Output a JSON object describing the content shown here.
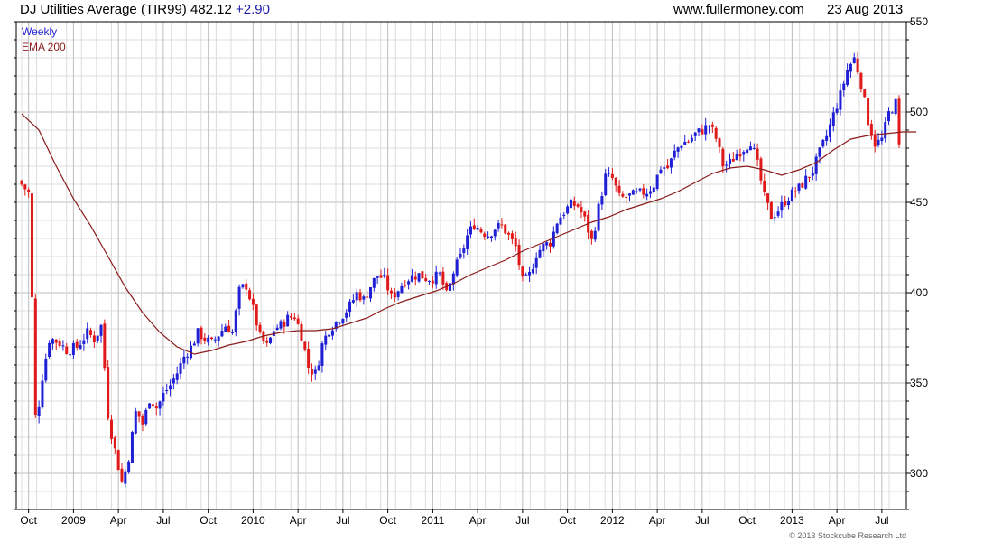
{
  "header": {
    "title": "DJ Utilities Average (TIR99) 482.12",
    "change": "+2.90",
    "site": "www.fullermoney.com",
    "date": "23 Aug 2013"
  },
  "legend": {
    "line1": "Weekly",
    "line2": "EMA 200"
  },
  "credit": "© 2013 Stockcube Research Ltd",
  "colors": {
    "up": "#1f1fd6",
    "down": "#e01a1a",
    "ema": "#8b1a1a",
    "grid": "#dcdcdc",
    "major_grid": "#bdbdbd"
  },
  "chart_data": {
    "type": "candlestick",
    "title": "DJ Utilities Average (TIR99) 482.12 +2.90",
    "ylim": [
      280,
      550
    ],
    "y_ticks": [
      300,
      350,
      400,
      450,
      500,
      550
    ],
    "x_ticks": [
      "Oct",
      "2009",
      "Apr",
      "Jul",
      "Oct",
      "2010",
      "Apr",
      "Jul",
      "Oct",
      "2011",
      "Apr",
      "Jul",
      "Oct",
      "2012",
      "Apr",
      "Jul",
      "Oct",
      "2013",
      "Apr",
      "Jul"
    ],
    "x_range": [
      0,
      254
    ],
    "x_tick_weeks": [
      2,
      15,
      28,
      41,
      54,
      67,
      80,
      93,
      106,
      119,
      132,
      145,
      158,
      171,
      184,
      197,
      210,
      223,
      236,
      249
    ],
    "series_names": [
      "Weekly",
      "EMA 200"
    ],
    "price_path": [
      [
        0,
        462
      ],
      [
        3,
        455
      ],
      [
        5,
        325
      ],
      [
        7,
        355
      ],
      [
        9,
        375
      ],
      [
        12,
        372
      ],
      [
        14,
        368
      ],
      [
        17,
        370
      ],
      [
        20,
        378
      ],
      [
        22,
        374
      ],
      [
        24,
        382
      ],
      [
        26,
        330
      ],
      [
        28,
        312
      ],
      [
        30,
        294
      ],
      [
        32,
        310
      ],
      [
        34,
        335
      ],
      [
        36,
        327
      ],
      [
        38,
        342
      ],
      [
        40,
        336
      ],
      [
        42,
        344
      ],
      [
        44,
        349
      ],
      [
        46,
        356
      ],
      [
        48,
        365
      ],
      [
        50,
        370
      ],
      [
        52,
        378
      ],
      [
        54,
        374
      ],
      [
        56,
        372
      ],
      [
        58,
        377
      ],
      [
        60,
        382
      ],
      [
        62,
        378
      ],
      [
        64,
        402
      ],
      [
        66,
        404
      ],
      [
        68,
        390
      ],
      [
        70,
        375
      ],
      [
        72,
        370
      ],
      [
        74,
        380
      ],
      [
        76,
        382
      ],
      [
        78,
        386
      ],
      [
        80,
        387
      ],
      [
        82,
        376
      ],
      [
        84,
        358
      ],
      [
        86,
        355
      ],
      [
        88,
        372
      ],
      [
        90,
        380
      ],
      [
        92,
        384
      ],
      [
        94,
        388
      ],
      [
        96,
        393
      ],
      [
        98,
        400
      ],
      [
        100,
        396
      ],
      [
        102,
        404
      ],
      [
        104,
        410
      ],
      [
        106,
        407
      ],
      [
        108,
        397
      ],
      [
        110,
        402
      ],
      [
        112,
        407
      ],
      [
        114,
        409
      ],
      [
        116,
        410
      ],
      [
        118,
        408
      ],
      [
        120,
        408
      ],
      [
        122,
        410
      ],
      [
        124,
        398
      ],
      [
        126,
        412
      ],
      [
        128,
        420
      ],
      [
        130,
        432
      ],
      [
        132,
        438
      ],
      [
        134,
        434
      ],
      [
        136,
        432
      ],
      [
        138,
        436
      ],
      [
        140,
        437
      ],
      [
        142,
        431
      ],
      [
        144,
        425
      ],
      [
        146,
        405
      ],
      [
        148,
        410
      ],
      [
        150,
        422
      ],
      [
        152,
        426
      ],
      [
        154,
        428
      ],
      [
        156,
        440
      ],
      [
        158,
        445
      ],
      [
        160,
        449
      ],
      [
        162,
        448
      ],
      [
        164,
        440
      ],
      [
        166,
        428
      ],
      [
        168,
        448
      ],
      [
        170,
        465
      ],
      [
        172,
        463
      ],
      [
        174,
        452
      ],
      [
        176,
        453
      ],
      [
        178,
        454
      ],
      [
        180,
        455
      ],
      [
        182,
        456
      ],
      [
        184,
        460
      ],
      [
        186,
        470
      ],
      [
        188,
        469
      ],
      [
        190,
        478
      ],
      [
        192,
        483
      ],
      [
        194,
        484
      ],
      [
        196,
        488
      ],
      [
        198,
        490
      ],
      [
        200,
        493
      ],
      [
        202,
        485
      ],
      [
        204,
        470
      ],
      [
        206,
        472
      ],
      [
        208,
        477
      ],
      [
        210,
        480
      ],
      [
        212,
        484
      ],
      [
        214,
        470
      ],
      [
        216,
        452
      ],
      [
        218,
        442
      ],
      [
        220,
        446
      ],
      [
        222,
        451
      ],
      [
        224,
        455
      ],
      [
        226,
        458
      ],
      [
        228,
        463
      ],
      [
        230,
        468
      ],
      [
        232,
        478
      ],
      [
        234,
        487
      ],
      [
        236,
        499
      ],
      [
        238,
        510
      ],
      [
        240,
        524
      ],
      [
        242,
        530
      ],
      [
        244,
        515
      ],
      [
        246,
        494
      ],
      [
        248,
        482
      ],
      [
        250,
        485
      ],
      [
        252,
        500
      ],
      [
        254,
        505
      ],
      [
        256,
        490
      ],
      [
        258,
        482
      ]
    ],
    "candle_count": 255,
    "last_close": 482.12,
    "ema_path": [
      [
        0,
        499
      ],
      [
        5,
        490
      ],
      [
        10,
        470
      ],
      [
        15,
        452
      ],
      [
        20,
        437
      ],
      [
        25,
        420
      ],
      [
        30,
        403
      ],
      [
        35,
        389
      ],
      [
        40,
        378
      ],
      [
        45,
        370
      ],
      [
        50,
        366
      ],
      [
        55,
        368
      ],
      [
        60,
        371
      ],
      [
        65,
        373
      ],
      [
        70,
        376
      ],
      [
        75,
        378
      ],
      [
        80,
        379
      ],
      [
        85,
        379
      ],
      [
        90,
        380
      ],
      [
        95,
        383
      ],
      [
        100,
        386
      ],
      [
        105,
        391
      ],
      [
        110,
        395
      ],
      [
        115,
        398
      ],
      [
        120,
        401
      ],
      [
        125,
        405
      ],
      [
        130,
        410
      ],
      [
        135,
        414
      ],
      [
        140,
        418
      ],
      [
        145,
        423
      ],
      [
        150,
        427
      ],
      [
        155,
        431
      ],
      [
        160,
        435
      ],
      [
        165,
        439
      ],
      [
        170,
        442
      ],
      [
        175,
        446
      ],
      [
        180,
        449
      ],
      [
        185,
        452
      ],
      [
        190,
        456
      ],
      [
        195,
        461
      ],
      [
        200,
        466
      ],
      [
        205,
        469
      ],
      [
        210,
        470
      ],
      [
        215,
        468
      ],
      [
        220,
        465
      ],
      [
        225,
        468
      ],
      [
        230,
        472
      ],
      [
        235,
        479
      ],
      [
        240,
        485
      ],
      [
        245,
        487
      ],
      [
        250,
        488
      ],
      [
        255,
        489
      ],
      [
        259,
        489
      ]
    ]
  }
}
